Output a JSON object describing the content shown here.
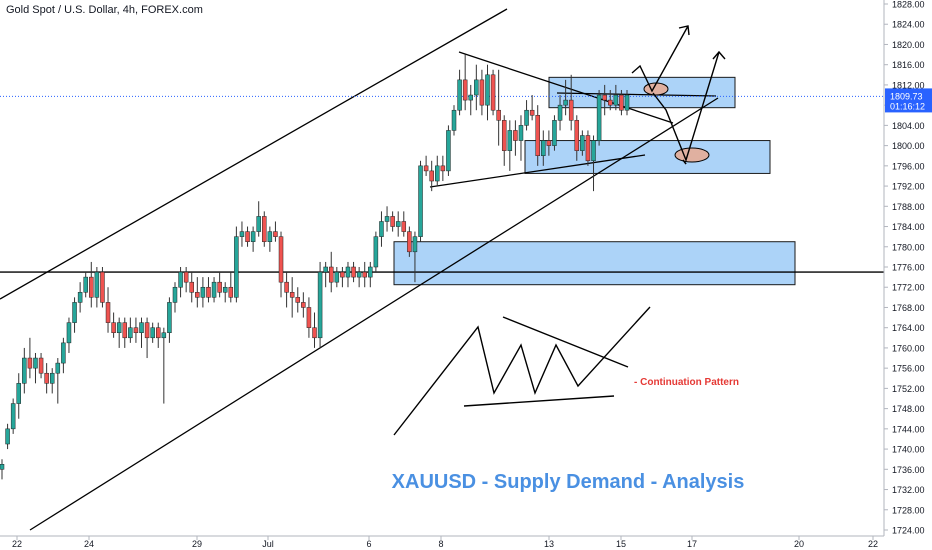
{
  "header": {
    "symbol_title": "Gold Spot / U.S. Dollar, 4h, FOREX.com"
  },
  "price_axis": {
    "ticks": [
      1828,
      1824,
      1820,
      1816,
      1812,
      1808,
      1804,
      1800,
      1796,
      1792,
      1788,
      1784,
      1780,
      1776,
      1772,
      1768,
      1764,
      1760,
      1756,
      1752,
      1748,
      1744,
      1740,
      1736,
      1732,
      1728,
      1724
    ],
    "tick_labels": [
      "1828.00",
      "1824.00",
      "1820.00",
      "1816.00",
      "1812.00",
      "1808.00",
      "1804.00",
      "1800.00",
      "1796.00",
      "1792.00",
      "1788.00",
      "1784.00",
      "1780.00",
      "1776.00",
      "1772.00",
      "1768.00",
      "1764.00",
      "1760.00",
      "1756.00",
      "1752.00",
      "1748.00",
      "1744.00",
      "1740.00",
      "1736.00",
      "1732.00",
      "1728.00",
      "1724.00"
    ],
    "current_price": "1809.73",
    "countdown": "01:16:12",
    "current_price_color": "#2962ff"
  },
  "time_axis": {
    "labels": [
      "22",
      "24",
      "29",
      "Jul",
      "6",
      "8",
      "13",
      "15",
      "17",
      "20",
      "22"
    ]
  },
  "annotations": {
    "pattern_label": "- Continuation Pattern",
    "analysis_title": "XAUUSD - Supply Demand - Analysis"
  },
  "colors": {
    "bull": "#26a69a",
    "bear": "#ef5350",
    "zone_fill": "#90c4f5",
    "zone_border": "#1a1a1a",
    "analysis_title": "#4a90e2",
    "pattern_label": "#e53935",
    "ellipse_fill": "#e0b0a0"
  },
  "chart_data": {
    "type": "candlestick",
    "symbol": "Gold Spot / U.S. Dollar",
    "timeframe": "4h",
    "ylim": [
      1724,
      1830
    ],
    "horizontal_level": 1775,
    "current_price": 1809.73,
    "supply_demand_zones": [
      {
        "from": 1772.5,
        "to": 1781
      },
      {
        "from": 1794.5,
        "to": 1801
      },
      {
        "from": 1807.5,
        "to": 1813.5
      }
    ],
    "candles": [
      {
        "o": 1736,
        "h": 1738,
        "l": 1734,
        "c": 1737
      },
      {
        "o": 1741,
        "h": 1745,
        "l": 1740,
        "c": 1744
      },
      {
        "o": 1744,
        "h": 1750,
        "l": 1743,
        "c": 1749
      },
      {
        "o": 1749,
        "h": 1755,
        "l": 1746,
        "c": 1753
      },
      {
        "o": 1753,
        "h": 1760,
        "l": 1751,
        "c": 1758
      },
      {
        "o": 1758,
        "h": 1762,
        "l": 1754,
        "c": 1756
      },
      {
        "o": 1756,
        "h": 1759,
        "l": 1753,
        "c": 1758
      },
      {
        "o": 1758,
        "h": 1759,
        "l": 1754,
        "c": 1755
      },
      {
        "o": 1755,
        "h": 1757,
        "l": 1751,
        "c": 1753
      },
      {
        "o": 1753,
        "h": 1756,
        "l": 1751,
        "c": 1755
      },
      {
        "o": 1755,
        "h": 1758,
        "l": 1749,
        "c": 1757
      },
      {
        "o": 1757,
        "h": 1762,
        "l": 1755,
        "c": 1761
      },
      {
        "o": 1761,
        "h": 1766,
        "l": 1759,
        "c": 1765
      },
      {
        "o": 1765,
        "h": 1770,
        "l": 1763,
        "c": 1769
      },
      {
        "o": 1769,
        "h": 1773,
        "l": 1767,
        "c": 1771
      },
      {
        "o": 1771,
        "h": 1775,
        "l": 1770,
        "c": 1774
      },
      {
        "o": 1774,
        "h": 1777,
        "l": 1768,
        "c": 1770
      },
      {
        "o": 1770,
        "h": 1776,
        "l": 1768,
        "c": 1775
      },
      {
        "o": 1775,
        "h": 1776,
        "l": 1768,
        "c": 1769
      },
      {
        "o": 1769,
        "h": 1772,
        "l": 1763,
        "c": 1765
      },
      {
        "o": 1765,
        "h": 1767,
        "l": 1762,
        "c": 1763
      },
      {
        "o": 1763,
        "h": 1766,
        "l": 1760,
        "c": 1765
      },
      {
        "o": 1765,
        "h": 1766,
        "l": 1760,
        "c": 1762
      },
      {
        "o": 1762,
        "h": 1766,
        "l": 1761,
        "c": 1764
      },
      {
        "o": 1764,
        "h": 1766,
        "l": 1761,
        "c": 1763
      },
      {
        "o": 1763,
        "h": 1766,
        "l": 1760,
        "c": 1765
      },
      {
        "o": 1765,
        "h": 1766,
        "l": 1758,
        "c": 1762
      },
      {
        "o": 1762,
        "h": 1765,
        "l": 1761,
        "c": 1764
      },
      {
        "o": 1764,
        "h": 1765,
        "l": 1760,
        "c": 1762
      },
      {
        "o": 1762,
        "h": 1764,
        "l": 1749,
        "c": 1763
      },
      {
        "o": 1763,
        "h": 1770,
        "l": 1761,
        "c": 1769
      },
      {
        "o": 1769,
        "h": 1773,
        "l": 1767,
        "c": 1772
      },
      {
        "o": 1772,
        "h": 1776,
        "l": 1770,
        "c": 1775
      },
      {
        "o": 1775,
        "h": 1776,
        "l": 1771,
        "c": 1773
      },
      {
        "o": 1773,
        "h": 1775,
        "l": 1769,
        "c": 1771
      },
      {
        "o": 1771,
        "h": 1774,
        "l": 1768,
        "c": 1770
      },
      {
        "o": 1770,
        "h": 1774,
        "l": 1768,
        "c": 1772
      },
      {
        "o": 1772,
        "h": 1774,
        "l": 1769,
        "c": 1770
      },
      {
        "o": 1770,
        "h": 1774,
        "l": 1769,
        "c": 1773
      },
      {
        "o": 1773,
        "h": 1775,
        "l": 1770,
        "c": 1771
      },
      {
        "o": 1771,
        "h": 1773,
        "l": 1769,
        "c": 1772
      },
      {
        "o": 1772,
        "h": 1775,
        "l": 1769,
        "c": 1770
      },
      {
        "o": 1770,
        "h": 1784,
        "l": 1769,
        "c": 1782
      },
      {
        "o": 1782,
        "h": 1785,
        "l": 1780,
        "c": 1783
      },
      {
        "o": 1783,
        "h": 1784,
        "l": 1780,
        "c": 1781
      },
      {
        "o": 1781,
        "h": 1784,
        "l": 1779,
        "c": 1783
      },
      {
        "o": 1783,
        "h": 1789,
        "l": 1782,
        "c": 1786
      },
      {
        "o": 1786,
        "h": 1787,
        "l": 1780,
        "c": 1781
      },
      {
        "o": 1781,
        "h": 1784,
        "l": 1779,
        "c": 1783
      },
      {
        "o": 1783,
        "h": 1785,
        "l": 1781,
        "c": 1782
      },
      {
        "o": 1782,
        "h": 1783,
        "l": 1770,
        "c": 1773
      },
      {
        "o": 1773,
        "h": 1775,
        "l": 1768,
        "c": 1771
      },
      {
        "o": 1771,
        "h": 1774,
        "l": 1766,
        "c": 1770
      },
      {
        "o": 1770,
        "h": 1772,
        "l": 1767,
        "c": 1769
      },
      {
        "o": 1769,
        "h": 1771,
        "l": 1766,
        "c": 1768
      },
      {
        "o": 1768,
        "h": 1770,
        "l": 1762,
        "c": 1764
      },
      {
        "o": 1764,
        "h": 1767,
        "l": 1760,
        "c": 1762
      },
      {
        "o": 1762,
        "h": 1777,
        "l": 1760,
        "c": 1775
      },
      {
        "o": 1775,
        "h": 1777,
        "l": 1772,
        "c": 1776
      },
      {
        "o": 1776,
        "h": 1779,
        "l": 1771,
        "c": 1773
      },
      {
        "o": 1773,
        "h": 1776,
        "l": 1772,
        "c": 1775
      },
      {
        "o": 1775,
        "h": 1776,
        "l": 1772,
        "c": 1774
      },
      {
        "o": 1774,
        "h": 1777,
        "l": 1772,
        "c": 1776
      },
      {
        "o": 1776,
        "h": 1777,
        "l": 1773,
        "c": 1774
      },
      {
        "o": 1774,
        "h": 1776,
        "l": 1772,
        "c": 1775
      },
      {
        "o": 1775,
        "h": 1777,
        "l": 1772,
        "c": 1774
      },
      {
        "o": 1774,
        "h": 1777,
        "l": 1772,
        "c": 1776
      },
      {
        "o": 1776,
        "h": 1783,
        "l": 1775,
        "c": 1782
      },
      {
        "o": 1782,
        "h": 1787,
        "l": 1780,
        "c": 1785
      },
      {
        "o": 1785,
        "h": 1788,
        "l": 1783,
        "c": 1786
      },
      {
        "o": 1786,
        "h": 1787,
        "l": 1783,
        "c": 1784
      },
      {
        "o": 1784,
        "h": 1787,
        "l": 1782,
        "c": 1785
      },
      {
        "o": 1785,
        "h": 1787,
        "l": 1782,
        "c": 1783
      },
      {
        "o": 1783,
        "h": 1784,
        "l": 1778,
        "c": 1779
      },
      {
        "o": 1779,
        "h": 1783,
        "l": 1773,
        "c": 1782
      },
      {
        "o": 1782,
        "h": 1797,
        "l": 1781,
        "c": 1796
      },
      {
        "o": 1796,
        "h": 1798,
        "l": 1794,
        "c": 1795
      },
      {
        "o": 1795,
        "h": 1797,
        "l": 1791,
        "c": 1793
      },
      {
        "o": 1793,
        "h": 1798,
        "l": 1792,
        "c": 1796
      },
      {
        "o": 1796,
        "h": 1798,
        "l": 1793,
        "c": 1795
      },
      {
        "o": 1795,
        "h": 1804,
        "l": 1794,
        "c": 1803
      },
      {
        "o": 1803,
        "h": 1808,
        "l": 1802,
        "c": 1807
      },
      {
        "o": 1807,
        "h": 1815,
        "l": 1806,
        "c": 1813
      },
      {
        "o": 1813,
        "h": 1818,
        "l": 1807,
        "c": 1809
      },
      {
        "o": 1809,
        "h": 1812,
        "l": 1806,
        "c": 1810
      },
      {
        "o": 1810,
        "h": 1816,
        "l": 1807,
        "c": 1813
      },
      {
        "o": 1813,
        "h": 1815,
        "l": 1806,
        "c": 1808
      },
      {
        "o": 1808,
        "h": 1816,
        "l": 1805,
        "c": 1814
      },
      {
        "o": 1814,
        "h": 1815,
        "l": 1806,
        "c": 1807
      },
      {
        "o": 1807,
        "h": 1815,
        "l": 1800,
        "c": 1805
      },
      {
        "o": 1805,
        "h": 1806,
        "l": 1796,
        "c": 1799
      },
      {
        "o": 1799,
        "h": 1805,
        "l": 1795,
        "c": 1803
      },
      {
        "o": 1803,
        "h": 1805,
        "l": 1798,
        "c": 1801
      },
      {
        "o": 1801,
        "h": 1806,
        "l": 1797,
        "c": 1804
      },
      {
        "o": 1804,
        "h": 1809,
        "l": 1803,
        "c": 1807
      },
      {
        "o": 1807,
        "h": 1810,
        "l": 1805,
        "c": 1806
      },
      {
        "o": 1806,
        "h": 1808,
        "l": 1796,
        "c": 1798
      },
      {
        "o": 1798,
        "h": 1803,
        "l": 1796,
        "c": 1801
      },
      {
        "o": 1801,
        "h": 1803,
        "l": 1798,
        "c": 1800
      },
      {
        "o": 1800,
        "h": 1806,
        "l": 1799,
        "c": 1805
      },
      {
        "o": 1805,
        "h": 1810,
        "l": 1803,
        "c": 1808
      },
      {
        "o": 1808,
        "h": 1813,
        "l": 1806,
        "c": 1809
      },
      {
        "o": 1809,
        "h": 1814,
        "l": 1803,
        "c": 1805
      },
      {
        "o": 1805,
        "h": 1806,
        "l": 1797,
        "c": 1799
      },
      {
        "o": 1799,
        "h": 1803,
        "l": 1798,
        "c": 1802
      },
      {
        "o": 1802,
        "h": 1803,
        "l": 1796,
        "c": 1797
      },
      {
        "o": 1797,
        "h": 1802,
        "l": 1791,
        "c": 1801
      },
      {
        "o": 1801,
        "h": 1811,
        "l": 1800,
        "c": 1810
      },
      {
        "o": 1810,
        "h": 1812,
        "l": 1806,
        "c": 1809
      },
      {
        "o": 1809,
        "h": 1811,
        "l": 1807,
        "c": 1808
      },
      {
        "o": 1808,
        "h": 1812,
        "l": 1807,
        "c": 1810
      },
      {
        "o": 1810,
        "h": 1811,
        "l": 1806,
        "c": 1807
      },
      {
        "o": 1807,
        "h": 1811,
        "l": 1806,
        "c": 1810
      }
    ]
  }
}
